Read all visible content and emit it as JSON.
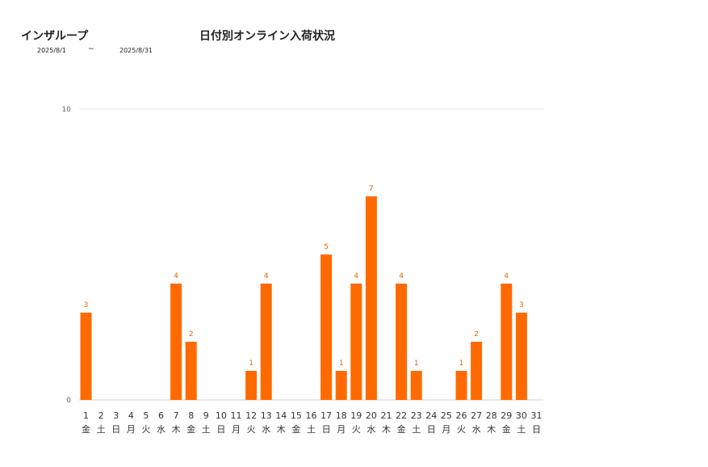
{
  "header": {
    "company": "インザループ",
    "title": "日付別オンライン入荷状況",
    "date_from": "2025/8/1",
    "tilde": "~",
    "date_to": "2025/8/31"
  },
  "chart_data": {
    "type": "bar",
    "categories": [
      "1",
      "2",
      "3",
      "4",
      "5",
      "6",
      "7",
      "8",
      "9",
      "10",
      "11",
      "12",
      "13",
      "14",
      "15",
      "16",
      "17",
      "18",
      "19",
      "20",
      "21",
      "22",
      "23",
      "24",
      "25",
      "26",
      "27",
      "28",
      "29",
      "30",
      "31"
    ],
    "weekdays": [
      "金",
      "土",
      "日",
      "月",
      "火",
      "水",
      "木",
      "金",
      "土",
      "日",
      "月",
      "火",
      "水",
      "木",
      "金",
      "土",
      "日",
      "月",
      "火",
      "水",
      "木",
      "金",
      "土",
      "日",
      "月",
      "火",
      "水",
      "木",
      "金",
      "土",
      "日"
    ],
    "values": [
      3,
      0,
      0,
      0,
      0,
      0,
      4,
      2,
      0,
      0,
      0,
      1,
      4,
      0,
      0,
      0,
      5,
      1,
      4,
      7,
      0,
      4,
      1,
      0,
      0,
      1,
      2,
      0,
      4,
      3,
      0
    ],
    "yticks": [
      0,
      10
    ],
    "ylim": [
      0,
      10
    ],
    "grid": true,
    "bar_color": "#ff6a00",
    "label_color": "#e8650a"
  }
}
